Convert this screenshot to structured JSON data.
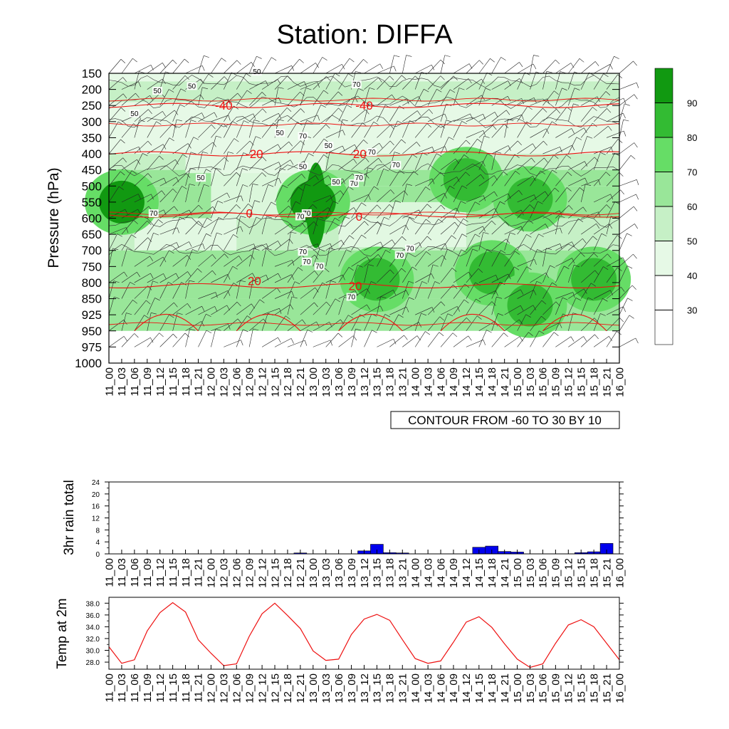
{
  "title": "Station: DIFFA",
  "colors": {
    "temp_contour": "#ee1111",
    "rain_bar": "#0000ee",
    "temp2m_line": "#ee1111",
    "rh_levels": [
      "#ffffff",
      "#ffffff",
      "#e6f9e6",
      "#c6f0c6",
      "#99e699",
      "#66dd66",
      "#33bb33",
      "#119911"
    ]
  },
  "time_labels": [
    "11_00",
    "11_03",
    "11_06",
    "11_09",
    "11_12",
    "11_15",
    "11_18",
    "11_21",
    "12_00",
    "12_03",
    "12_06",
    "12_09",
    "12_12",
    "12_15",
    "12_18",
    "12_21",
    "13_00",
    "13_03",
    "13_06",
    "13_09",
    "13_12",
    "13_15",
    "13_18",
    "13_21",
    "14_00",
    "14_03",
    "14_06",
    "14_09",
    "14_12",
    "14_15",
    "14_18",
    "14_21",
    "15_00",
    "15_03",
    "15_06",
    "15_09",
    "15_12",
    "15_15",
    "15_18",
    "15_21",
    "16_00"
  ],
  "main": {
    "ylabel": "Pressure (hPa)",
    "pressure_levels": [
      "150",
      "200",
      "250",
      "300",
      "350",
      "400",
      "450",
      "500",
      "550",
      "600",
      "650",
      "700",
      "750",
      "800",
      "850",
      "925",
      "950",
      "975",
      "1000"
    ],
    "contour_info": "CONTOUR FROM -60 TO 30 BY 10",
    "colorbar_labels": [
      "30",
      "40",
      "50",
      "60",
      "70",
      "80",
      "90"
    ],
    "temp_contour_labels": [
      "-40",
      "-40",
      "-20",
      "-20",
      "0",
      "0",
      "20",
      "20"
    ],
    "rh_contour_labels": [
      "50",
      "50",
      "50",
      "50",
      "50",
      "50",
      "50",
      "50",
      "50",
      "70",
      "70",
      "70",
      "70",
      "70",
      "70",
      "70",
      "70",
      "70",
      "70",
      "70",
      "70",
      "70",
      "70",
      "70"
    ]
  },
  "chart_data": [
    {
      "type": "heatmap",
      "title": "Station: DIFFA",
      "ylabel": "Pressure (hPa)",
      "xlabel": "",
      "description_of_fill": "relative humidity (%) shaded 30-90 by 10",
      "contours": "temperature (C) red lines from -60 to 30 by 10",
      "x": [
        "11_00",
        "11_03",
        "11_06",
        "11_09",
        "11_12",
        "11_15",
        "11_18",
        "11_21",
        "12_00",
        "12_03",
        "12_06",
        "12_09",
        "12_12",
        "12_15",
        "12_18",
        "12_21",
        "13_00",
        "13_03",
        "13_06",
        "13_09",
        "13_12",
        "13_15",
        "13_18",
        "13_21",
        "14_00",
        "14_03",
        "14_06",
        "14_09",
        "14_12",
        "14_15",
        "14_18",
        "14_21",
        "15_00",
        "15_03",
        "15_06",
        "15_09",
        "15_12",
        "15_15",
        "15_18",
        "15_21",
        "16_00"
      ],
      "y": [
        150,
        200,
        250,
        300,
        350,
        400,
        450,
        500,
        550,
        600,
        650,
        700,
        750,
        800,
        850,
        925,
        950,
        975,
        1000
      ],
      "temperature_contour_levels": [
        -40,
        -20,
        0,
        20
      ],
      "temperature_contour_pressure": {
        "-40": 250,
        "-20": 400,
        "0": 590,
        "20": 810
      },
      "rh_blobs": [
        {
          "time": "11_03",
          "pressure": 550,
          "rh": 90
        },
        {
          "time": "13_00",
          "pressure": 550,
          "rh": 90
        },
        {
          "time": "13_15",
          "pressure": 790,
          "rh": 85
        },
        {
          "time": "14_12",
          "pressure": 480,
          "rh": 85
        },
        {
          "time": "15_03",
          "pressure": 540,
          "rh": 85
        },
        {
          "time": "14_18",
          "pressure": 770,
          "rh": 85
        },
        {
          "time": "15_18",
          "pressure": 790,
          "rh": 85
        },
        {
          "time": "15_03",
          "pressure": 880,
          "rh": 80
        }
      ]
    },
    {
      "type": "bar",
      "ylabel": "3hr rain total",
      "ylim": [
        0,
        24
      ],
      "yticks": [
        "0",
        "4",
        "8",
        "12",
        "16",
        "20",
        "24"
      ],
      "categories": [
        "11_00",
        "11_03",
        "11_06",
        "11_09",
        "11_12",
        "11_15",
        "11_18",
        "11_21",
        "12_00",
        "12_03",
        "12_06",
        "12_09",
        "12_12",
        "12_15",
        "12_18",
        "12_21",
        "13_00",
        "13_03",
        "13_06",
        "13_09",
        "13_12",
        "13_15",
        "13_18",
        "13_21",
        "14_00",
        "14_03",
        "14_06",
        "14_09",
        "14_12",
        "14_15",
        "14_18",
        "14_21",
        "15_00",
        "15_03",
        "15_06",
        "15_09",
        "15_12",
        "15_15",
        "15_18",
        "15_21",
        "16_00"
      ],
      "values": [
        0,
        0,
        0,
        0,
        0,
        0,
        0,
        0,
        0,
        0,
        0,
        0,
        0,
        0,
        0,
        0.3,
        0,
        0,
        0,
        0,
        1.0,
        3.2,
        0.4,
        0.3,
        0,
        0,
        0,
        0,
        0,
        2.2,
        2.6,
        0.8,
        0.6,
        0,
        0,
        0,
        0,
        0.4,
        0.7,
        3.5,
        0
      ]
    },
    {
      "type": "line",
      "ylabel": "Temp at 2m",
      "ylim": [
        26.8,
        39.0
      ],
      "yticks": [
        "28.0",
        "30.0",
        "32.0",
        "34.0",
        "36.0",
        "38.0"
      ],
      "x": [
        "11_00",
        "11_03",
        "11_06",
        "11_09",
        "11_12",
        "11_15",
        "11_18",
        "11_21",
        "12_00",
        "12_03",
        "12_06",
        "12_09",
        "12_12",
        "12_15",
        "12_18",
        "12_21",
        "13_00",
        "13_03",
        "13_06",
        "13_09",
        "13_12",
        "13_15",
        "13_18",
        "13_21",
        "14_00",
        "14_03",
        "14_06",
        "14_09",
        "14_12",
        "14_15",
        "14_18",
        "14_21",
        "15_00",
        "15_03",
        "15_06",
        "15_09",
        "15_12",
        "15_15",
        "15_18",
        "15_21",
        "16_00"
      ],
      "values": [
        30.6,
        27.8,
        28.4,
        33.3,
        36.4,
        38.1,
        36.5,
        31.8,
        29.5,
        27.4,
        27.7,
        32.4,
        36.2,
        38.0,
        35.9,
        33.7,
        29.9,
        28.3,
        28.5,
        32.7,
        35.3,
        36.1,
        35.1,
        31.8,
        28.6,
        27.8,
        28.2,
        31.4,
        34.8,
        35.7,
        33.9,
        31.1,
        28.5,
        27.1,
        27.7,
        31.2,
        34.3,
        35.2,
        34.0,
        31.2,
        28.4
      ]
    }
  ]
}
